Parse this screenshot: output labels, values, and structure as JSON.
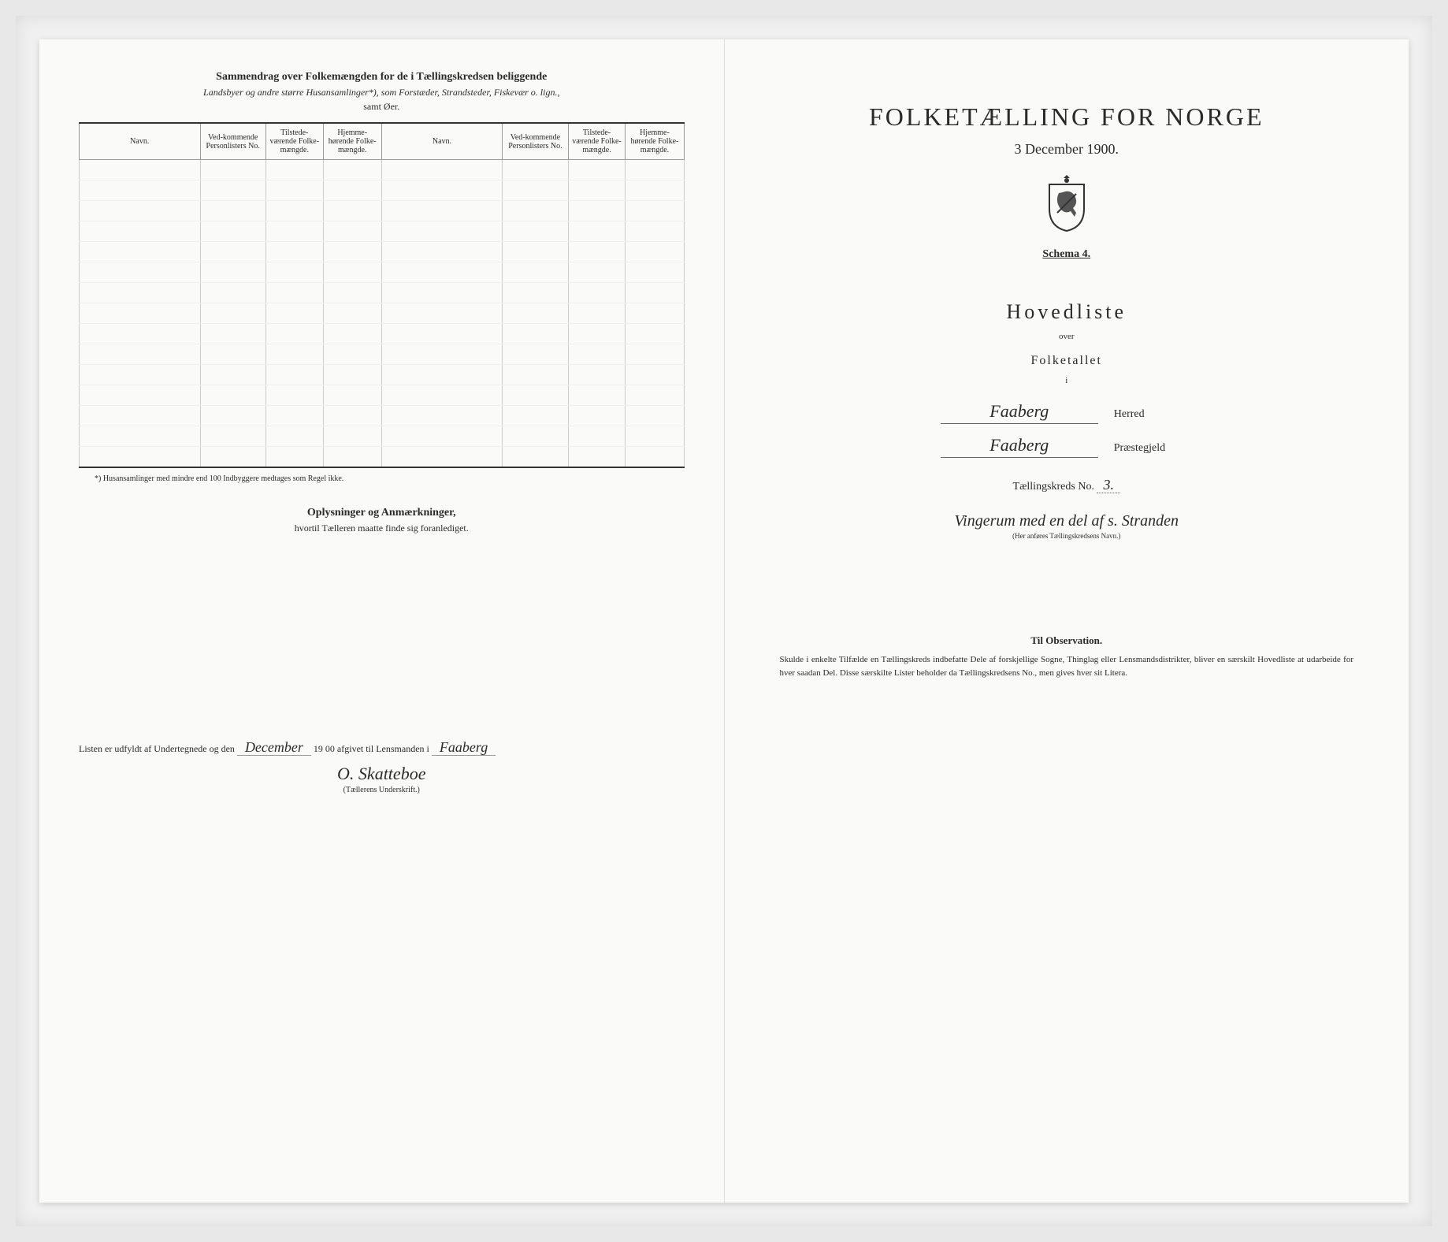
{
  "left": {
    "summary_title": "Sammendrag over Folkemængden for de i Tællingskredsen beliggende",
    "summary_subtitle": "Landsbyer og andre større Husansamlinger*), som Forstæder, Strandsteder, Fiskevær o. lign.,",
    "summary_subtitle2": "samt Øer.",
    "headers": {
      "navn": "Navn.",
      "vedkommende": "Ved-kommende Personlisters No.",
      "tilstede": "Tilstede-værende Folke-mængde.",
      "hjemme": "Hjemme-hørende Folke-mængde."
    },
    "footnote": "*) Husansamlinger med mindre end 100 Indbyggere medtages som Regel ikke.",
    "oplysninger_title": "Oplysninger og Anmærkninger,",
    "oplysninger_sub": "hvortil Tælleren maatte finde sig foranlediget.",
    "listen_prefix": "Listen er udfyldt af Undertegnede og den",
    "listen_date_hand": "December",
    "listen_year": "19 00",
    "listen_mid": "afgivet til Lensmanden i",
    "listen_place": "Faaberg",
    "signature": "O. Skatteboe",
    "signature_label": "(Tællerens Underskrift.)"
  },
  "right": {
    "main_title": "FOLKETÆLLING FOR NORGE",
    "date": "3 December 1900.",
    "schema": "Schema 4.",
    "hovedliste": "Hovedliste",
    "over": "over",
    "folketallet": "Folketallet",
    "i": "i",
    "herred_value": "Faaberg",
    "herred_label": "Herred",
    "praestegjeld_value": "Faaberg",
    "praestegjeld_label": "Præstegjeld",
    "kreds_label": "Tællingskreds No.",
    "kreds_no": "3.",
    "kreds_name": "Vingerum med en del af s. Stranden",
    "kreds_hint": "(Her anføres Tællingskredsens Navn.)",
    "obs_title": "Til Observation.",
    "obs_text": "Skulde i enkelte Tilfælde en Tællingskreds indbefatte Dele af forskjellige Sogne, Thinglag eller Lensmandsdistrikter, bliver en særskilt Hovedliste at udarbeide for hver saadan Del. Disse særskilte Lister beholder da Tællingskredsens No., men gives hver sit Litera."
  },
  "style": {
    "page_bg": "#fafaf8",
    "frame_bg": "#f0f0f0",
    "text_color": "#2a2a2a",
    "rule_color": "#333333"
  },
  "table": {
    "row_count": 15
  }
}
